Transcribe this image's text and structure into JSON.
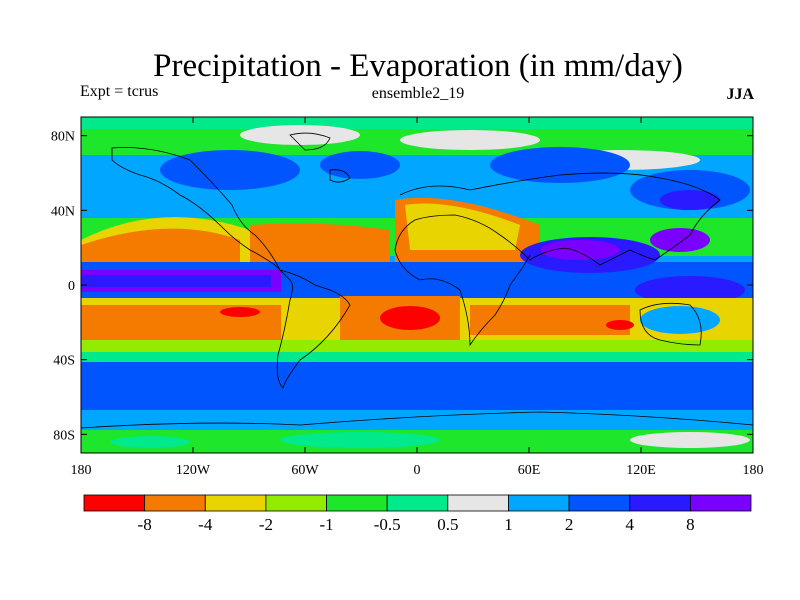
{
  "header": {
    "title": "Precipitation - Evaporation (in mm/day)",
    "left_label": "Expt = tcrus",
    "center_label": "ensemble2_19",
    "right_label": "JJA"
  },
  "map": {
    "projection": "cylindrical-equidistant",
    "lon_range": [
      -180,
      180
    ],
    "lat_range": [
      -90,
      90
    ],
    "lat_ticks": [
      {
        "lat": 80,
        "label": "80N"
      },
      {
        "lat": 40,
        "label": "40N"
      },
      {
        "lat": 0,
        "label": "0"
      },
      {
        "lat": -40,
        "label": "40S"
      },
      {
        "lat": -80,
        "label": "80S"
      }
    ],
    "lon_ticks": [
      {
        "lon": -180,
        "label": "180"
      },
      {
        "lon": -120,
        "label": "120W"
      },
      {
        "lon": -60,
        "label": "60W"
      },
      {
        "lon": 0,
        "label": "0"
      },
      {
        "lon": 60,
        "label": "60E"
      },
      {
        "lon": 120,
        "label": "120E"
      },
      {
        "lon": 180,
        "label": "180"
      }
    ],
    "coastlines": true
  },
  "colorbar": {
    "colors": [
      "#ff0000",
      "#f57a00",
      "#e8d400",
      "#93ec00",
      "#1ee62b",
      "#00e98a",
      "#e6e6e6",
      "#00a6ff",
      "#0055ff",
      "#2a1aff",
      "#7a00ff"
    ],
    "tick_labels": [
      "-8",
      "-4",
      "-2",
      "-1",
      "-0.5",
      "0.5",
      "1",
      "2",
      "4",
      "8"
    ]
  }
}
